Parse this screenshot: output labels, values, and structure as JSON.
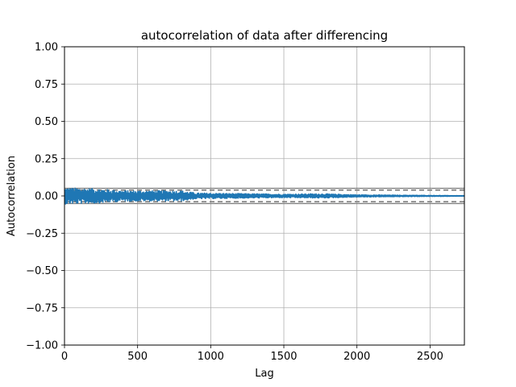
{
  "chart_data": {
    "type": "line",
    "title": "autocorrelation of data after differencing",
    "xlabel": "Lag",
    "ylabel": "Autocorrelation",
    "xlim": [
      0,
      2735
    ],
    "ylim": [
      -1.0,
      1.0
    ],
    "xticks": [
      0,
      500,
      1000,
      1500,
      2000,
      2500
    ],
    "xtick_labels": [
      "0",
      "500",
      "1000",
      "1500",
      "2000",
      "2500"
    ],
    "yticks": [
      1.0,
      0.75,
      0.5,
      0.25,
      0.0,
      -0.25,
      -0.5,
      -0.75,
      -1.0
    ],
    "ytick_labels": [
      "1.00",
      "0.75",
      "0.50",
      "0.25",
      "0.00",
      "−0.25",
      "−0.50",
      "−0.75",
      "−1.00"
    ],
    "grid": true,
    "series": [
      {
        "values_note": "",
        "x_range": [
          1,
          2735
        ],
        "color": "#1f77b4",
        "envelope": [
          {
            "x": 0,
            "amp": 0.055
          },
          {
            "x": 200,
            "amp": 0.05
          },
          {
            "x": 400,
            "amp": 0.035
          },
          {
            "x": 800,
            "amp": 0.035
          },
          {
            "x": 900,
            "amp": 0.02
          },
          {
            "x": 1500,
            "amp": 0.012
          },
          {
            "x": 1750,
            "amp": 0.015
          },
          {
            "x": 2000,
            "amp": 0.008
          },
          {
            "x": 2735,
            "amp": 0.002
          }
        ]
      }
    ],
    "reference_lines": [
      {
        "y": 0.0,
        "style": "solid",
        "color": "#000000"
      },
      {
        "y": 0.0508,
        "style": "solid",
        "color": "#808080"
      },
      {
        "y": -0.0508,
        "style": "solid",
        "color": "#808080"
      },
      {
        "y": 0.0387,
        "style": "dashed",
        "color": "#808080"
      },
      {
        "y": -0.0387,
        "style": "dashed",
        "color": "#808080"
      }
    ]
  }
}
